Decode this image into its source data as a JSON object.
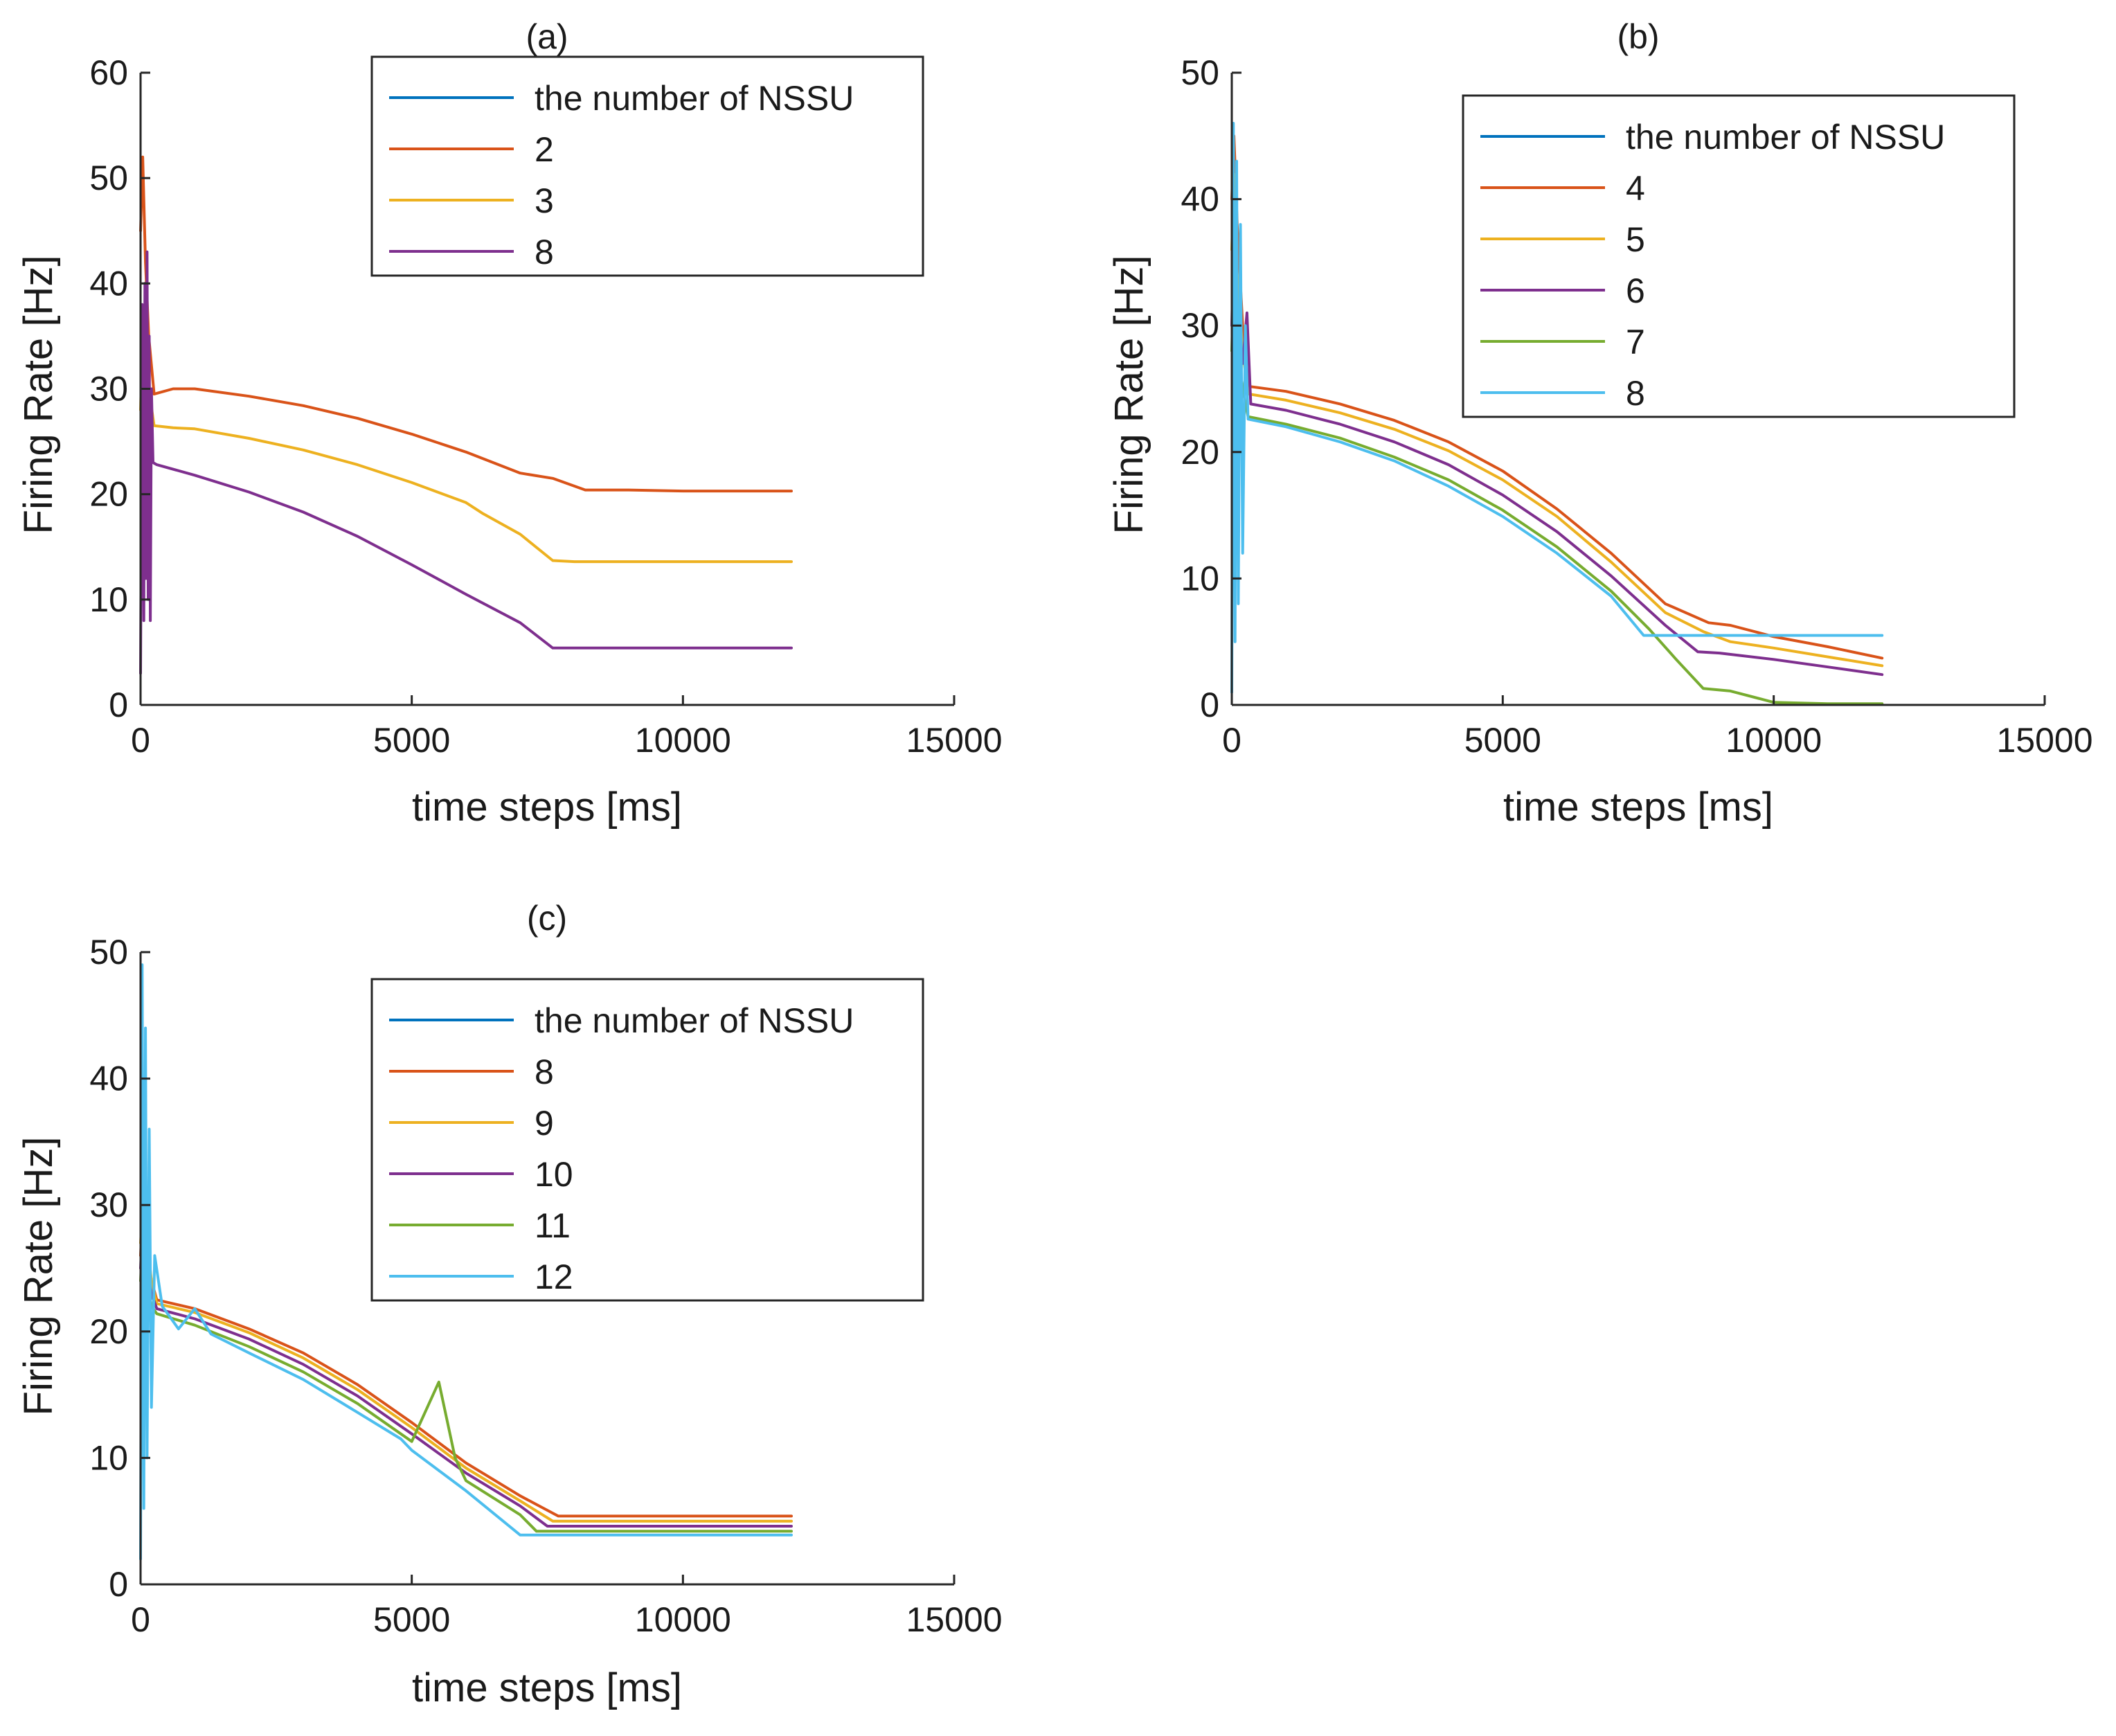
{
  "figure_title": "",
  "chart_data": [
    {
      "type": "line",
      "panel": "(a)",
      "title": "(a)",
      "xlabel": "time steps [ms]",
      "ylabel": "Firing Rate [Hz]",
      "xlim": [
        0,
        15000
      ],
      "ylim": [
        0,
        60
      ],
      "xticks": [
        0,
        5000,
        10000,
        15000
      ],
      "yticks": [
        0,
        10,
        20,
        30,
        40,
        50,
        60
      ],
      "grid": false,
      "legend_position": "top-right",
      "legend_title": "the number of NSSU",
      "series": [
        {
          "name": "2",
          "color": "#D95319",
          "x": [
            0,
            40,
            90,
            150,
            250,
            600,
            1000,
            2000,
            3000,
            4000,
            5000,
            6000,
            7000,
            7600,
            8200,
            9000,
            10000,
            11000,
            12000
          ],
          "y": [
            45,
            52,
            42,
            35,
            29.5,
            30,
            30,
            29.3,
            28.4,
            27.2,
            25.7,
            24,
            22,
            21.5,
            20.4,
            20.4,
            20.3,
            20.3,
            20.3
          ]
        },
        {
          "name": "3",
          "color": "#EDB120",
          "x": [
            0,
            40,
            90,
            150,
            250,
            600,
            1000,
            2000,
            3000,
            4000,
            5000,
            6000,
            6300,
            7000,
            7600,
            8000,
            9000,
            10000,
            11000,
            12000
          ],
          "y": [
            28,
            36,
            33,
            30,
            26.5,
            26.3,
            26.2,
            25.3,
            24.2,
            22.8,
            21.1,
            19.2,
            18.2,
            16.2,
            13.7,
            13.6,
            13.6,
            13.6,
            13.6,
            13.6
          ]
        },
        {
          "name": "8",
          "color": "#7E2F8E",
          "x": [
            0,
            30,
            60,
            80,
            100,
            120,
            140,
            160,
            180,
            200,
            230,
            300,
            1000,
            2000,
            3000,
            4000,
            5000,
            6000,
            7000,
            7600,
            8000,
            9000,
            10000,
            11000,
            12000
          ],
          "y": [
            3,
            38,
            8,
            40,
            12,
            43,
            10,
            35,
            8,
            30,
            23,
            22.8,
            21.8,
            20.2,
            18.3,
            16,
            13.3,
            10.5,
            7.8,
            5.4,
            5.4,
            5.4,
            5.4,
            5.4,
            5.4
          ]
        }
      ]
    },
    {
      "type": "line",
      "panel": "(b)",
      "title": "(b)",
      "xlabel": "time steps [ms]",
      "ylabel": "Firing Rate [Hz]",
      "xlim": [
        0,
        15000
      ],
      "ylim": [
        0,
        50
      ],
      "xticks": [
        0,
        5000,
        10000,
        15000
      ],
      "yticks": [
        0,
        10,
        20,
        30,
        40,
        50
      ],
      "grid": false,
      "legend_position": "top-right",
      "legend_title": "the number of NSSU",
      "series": [
        {
          "name": "4",
          "color": "#D95319",
          "x": [
            0,
            40,
            100,
            200,
            300,
            1000,
            2000,
            3000,
            4000,
            5000,
            6000,
            7000,
            8000,
            8800,
            9200,
            10000,
            11000,
            12000
          ],
          "y": [
            40,
            45,
            38,
            30,
            25.2,
            24.8,
            23.8,
            22.5,
            20.8,
            18.5,
            15.5,
            12,
            8,
            6.5,
            6.3,
            5.4,
            4.6,
            3.7
          ]
        },
        {
          "name": "5",
          "color": "#EDB120",
          "x": [
            0,
            40,
            100,
            200,
            300,
            1000,
            2000,
            3000,
            4000,
            5000,
            6000,
            7000,
            8000,
            8700,
            9200,
            10000,
            11000,
            12000
          ],
          "y": [
            36,
            42,
            34,
            28,
            24.6,
            24.1,
            23.1,
            21.8,
            20.1,
            17.8,
            14.9,
            11.3,
            7.3,
            5.8,
            5,
            4.5,
            3.8,
            3.1
          ]
        },
        {
          "name": "6",
          "color": "#7E2F8E",
          "x": [
            0,
            40,
            100,
            200,
            280,
            350,
            1000,
            2000,
            3000,
            4000,
            5000,
            6000,
            7000,
            8000,
            8600,
            9000,
            10000,
            11000,
            12000
          ],
          "y": [
            30,
            38,
            30,
            27,
            31,
            23.8,
            23.3,
            22.2,
            20.8,
            19,
            16.6,
            13.7,
            10.2,
            6.3,
            4.2,
            4.1,
            3.6,
            3,
            2.4
          ]
        },
        {
          "name": "7",
          "color": "#77AC30",
          "x": [
            0,
            40,
            100,
            200,
            300,
            1000,
            2000,
            3000,
            4000,
            5000,
            6000,
            7000,
            7700,
            8200,
            8700,
            9200,
            10000,
            11000,
            12000
          ],
          "y": [
            28,
            35,
            28,
            25,
            22.8,
            22.2,
            21.1,
            19.6,
            17.8,
            15.4,
            12.5,
            9,
            6,
            3.6,
            1.3,
            1.1,
            0.2,
            0.1,
            0.1
          ]
        },
        {
          "name": "8",
          "color": "#4DBEEE",
          "x": [
            0,
            30,
            60,
            90,
            120,
            160,
            200,
            250,
            300,
            1000,
            2000,
            3000,
            4000,
            5000,
            6000,
            7000,
            7600,
            8000,
            9000,
            10000,
            11000,
            12000
          ],
          "y": [
            1,
            46,
            5,
            43,
            8,
            38,
            12,
            30,
            22.6,
            22,
            20.8,
            19.3,
            17.3,
            14.9,
            12,
            8.6,
            5.5,
            5.5,
            5.5,
            5.5,
            5.5,
            5.5
          ]
        }
      ]
    },
    {
      "type": "line",
      "panel": "(c)",
      "title": "(c)",
      "xlabel": "time steps [ms]",
      "ylabel": "Firing Rate [Hz]",
      "xlim": [
        0,
        15000
      ],
      "ylim": [
        0,
        50
      ],
      "xticks": [
        0,
        5000,
        10000,
        15000
      ],
      "yticks": [
        0,
        10,
        20,
        30,
        40,
        50
      ],
      "grid": false,
      "legend_position": "top-right",
      "legend_title": "the number of NSSU",
      "series": [
        {
          "name": "8",
          "color": "#D95319",
          "x": [
            0,
            40,
            100,
            200,
            300,
            1000,
            2000,
            3000,
            4000,
            5000,
            6000,
            7000,
            7700,
            8000,
            9000,
            10000,
            11000,
            12000
          ],
          "y": [
            26,
            30,
            27,
            24,
            22.5,
            21.8,
            20.2,
            18.3,
            15.8,
            12.8,
            9.6,
            7,
            5.4,
            5.4,
            5.4,
            5.4,
            5.4,
            5.4
          ]
        },
        {
          "name": "9",
          "color": "#EDB120",
          "x": [
            0,
            40,
            100,
            200,
            300,
            1000,
            2000,
            3000,
            4000,
            5000,
            6000,
            7000,
            7600,
            8000,
            9000,
            10000,
            11000,
            12000
          ],
          "y": [
            27,
            30,
            28,
            24,
            22.2,
            21.5,
            19.9,
            17.9,
            15.4,
            12.4,
            9.2,
            6.6,
            5,
            5,
            5,
            5,
            5,
            5
          ]
        },
        {
          "name": "10",
          "color": "#7E2F8E",
          "x": [
            0,
            40,
            100,
            200,
            300,
            1000,
            2000,
            3000,
            4000,
            5000,
            6000,
            7000,
            7500,
            8000,
            9000,
            10000,
            11000,
            12000
          ],
          "y": [
            25,
            29,
            26,
            23,
            21.8,
            21,
            19.4,
            17.4,
            14.9,
            11.9,
            8.8,
            6.2,
            4.6,
            4.6,
            4.6,
            4.6,
            4.6,
            4.6
          ]
        },
        {
          "name": "11",
          "color": "#77AC30",
          "x": [
            0,
            40,
            100,
            200,
            300,
            1000,
            2000,
            3000,
            4000,
            5000,
            5500,
            5800,
            6000,
            7000,
            7300,
            8000,
            9000,
            10000,
            11000,
            12000
          ],
          "y": [
            24,
            28,
            25,
            22,
            21.4,
            20.5,
            18.8,
            16.8,
            14.3,
            11.3,
            16,
            10,
            8.2,
            5.5,
            4.2,
            4.2,
            4.2,
            4.2,
            4.2,
            4.2
          ]
        },
        {
          "name": "12",
          "color": "#4DBEEE",
          "x": [
            0,
            30,
            60,
            90,
            120,
            160,
            200,
            260,
            400,
            700,
            1000,
            1300,
            2000,
            3000,
            4000,
            4800,
            5000,
            6000,
            7000,
            8000,
            9000,
            10000,
            11000,
            12000
          ],
          "y": [
            2,
            49,
            6,
            44,
            10,
            36,
            14,
            26,
            22,
            20.2,
            21.8,
            19.8,
            18.3,
            16.2,
            13.6,
            11.5,
            10.6,
            7.4,
            3.9,
            3.9,
            3.9,
            3.9,
            3.9,
            3.9
          ]
        }
      ]
    }
  ]
}
